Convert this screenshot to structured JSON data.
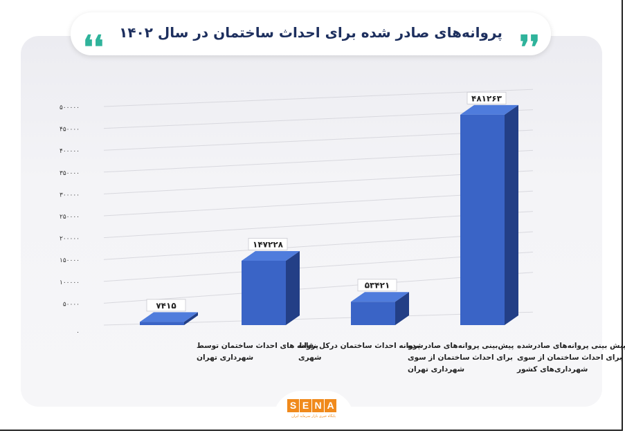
{
  "header": {
    "title": "پروانه‌های صادر شده برای احداث ساختمان در سال ۱۴۰۲",
    "quote_open": "❛❛",
    "quote_close": "❜❜"
  },
  "colors": {
    "accent": "#2fb39b",
    "title": "#1d2f5e",
    "bar_front": "#3a64c6",
    "bar_side": "#233f86",
    "bar_top": "#4f7cdc"
  },
  "logo": {
    "letters": [
      "S",
      "E",
      "N",
      "A"
    ],
    "subtitle": "پایگاه خبری بازار سرمایه ایران"
  },
  "chart_data": {
    "type": "bar",
    "title": "",
    "xlabel": "",
    "ylabel": "",
    "ylim": [
      0,
      500000
    ],
    "y_ticks": [
      0,
      50000,
      100000,
      150000,
      200000,
      250000,
      300000,
      350000,
      400000,
      450000,
      500000
    ],
    "y_tick_labels": [
      "۰",
      "۵۰۰۰۰",
      "۱۰۰۰۰۰",
      "۱۵۰۰۰۰",
      "۲۰۰۰۰۰",
      "۲۵۰۰۰۰",
      "۳۰۰۰۰۰",
      "۳۵۰۰۰۰",
      "۴۰۰۰۰۰",
      "۴۵۰۰۰۰",
      "۵۰۰۰۰۰"
    ],
    "grid": true,
    "legend": "none",
    "categories": [
      [
        "پروانه های احداث ساختمان توسط",
        "شهرداری تهران"
      ],
      [
        "پروانه احداث ساختمان درکل نقاط",
        "شهری"
      ],
      [
        "پیش‌بینی پروانه‌های صادرشده",
        "برای احداث ساختمان از سوی",
        "شهرداری تهران"
      ],
      [
        "پیش بینی پروانه‌های صادرشده",
        "برای احداث ساختمان از سوی",
        "شهرداری‌های کشور"
      ]
    ],
    "values": [
      7415,
      147228,
      53421,
      481263
    ],
    "value_labels": [
      "۷۴۱۵",
      "۱۴۷۲۲۸",
      "۵۳۴۲۱",
      "۴۸۱۲۶۳"
    ]
  }
}
